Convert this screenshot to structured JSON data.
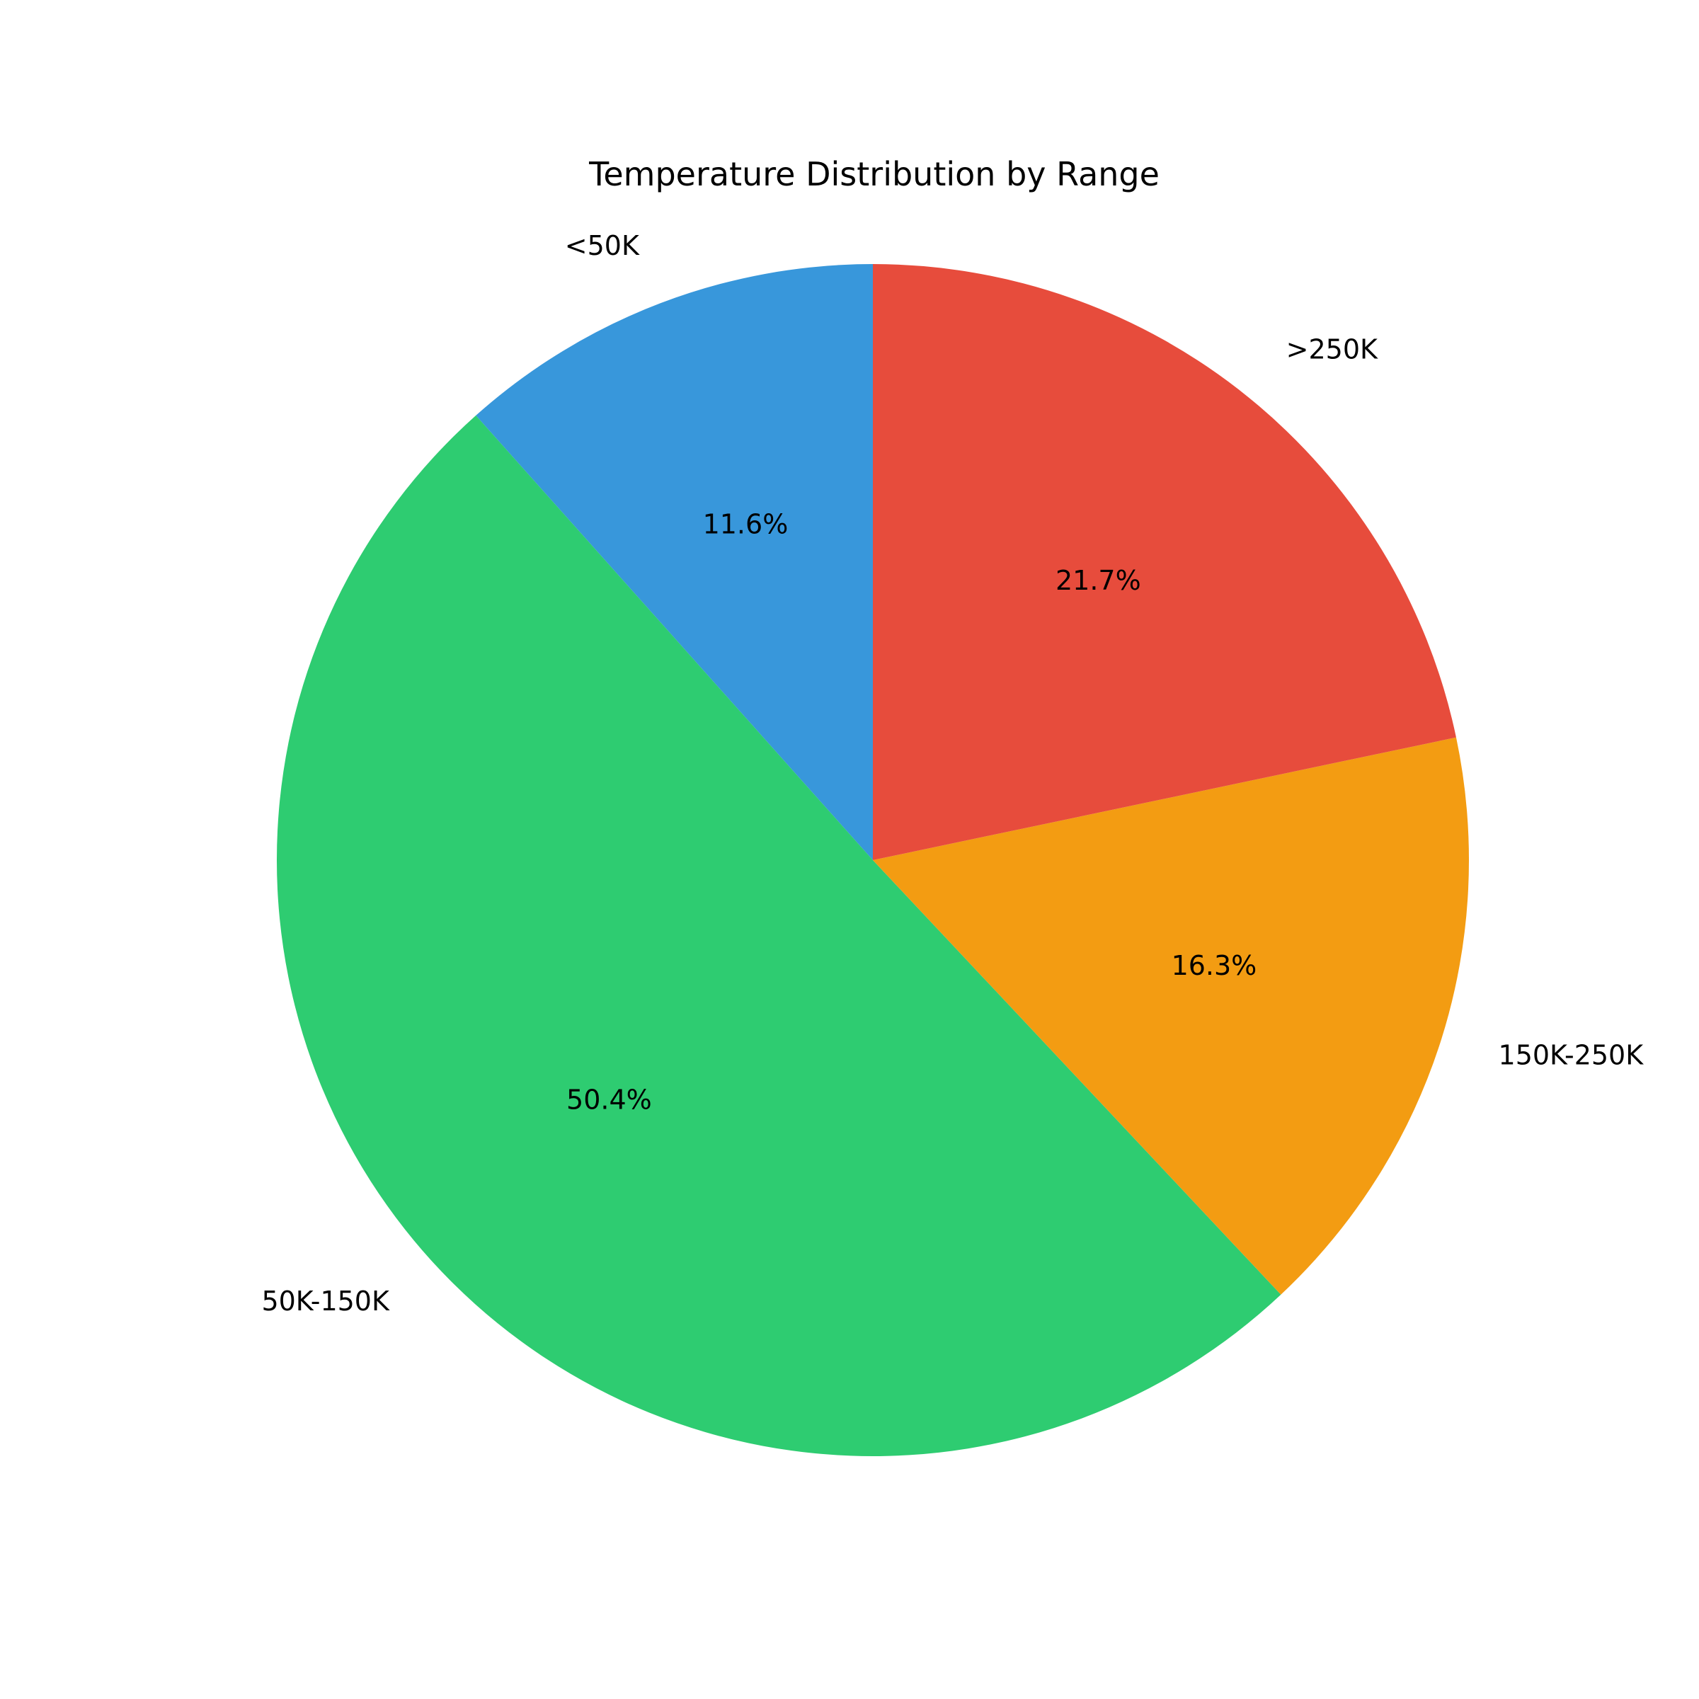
{
  "chart_data": {
    "type": "pie",
    "title": "Temperature Distribution by Range",
    "categories": [
      "<50K",
      "50K-150K",
      "150K-250K",
      ">250K"
    ],
    "values": [
      11.6,
      50.4,
      16.3,
      21.7
    ],
    "percent_labels": [
      "11.6%",
      "50.4%",
      "16.3%",
      "21.7%"
    ],
    "colors": [
      "#3897db",
      "#2ecc71",
      "#f39c12",
      "#e74c3c"
    ],
    "start_angle_deg": 90,
    "direction": "counterclockwise",
    "legend": "none"
  }
}
